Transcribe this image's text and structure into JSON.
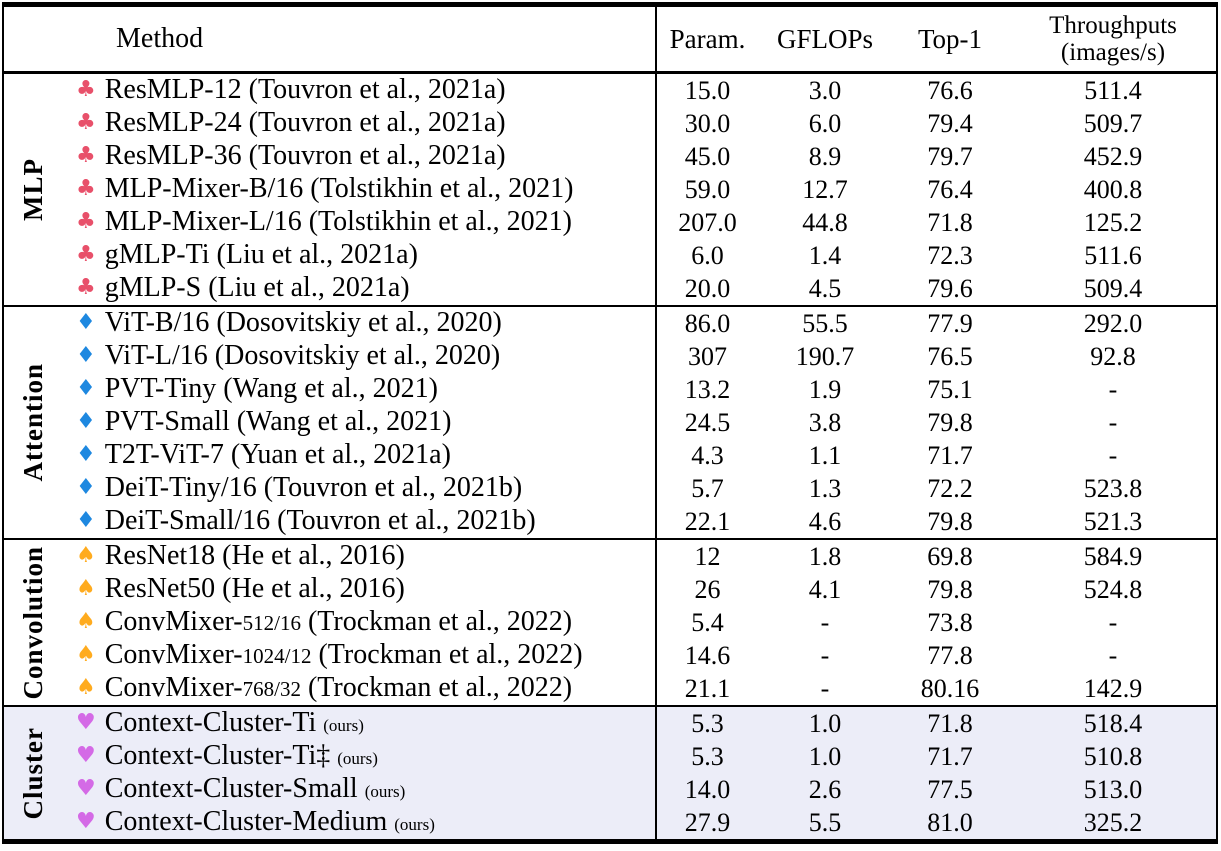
{
  "header": {
    "method": "Method",
    "param": "Param.",
    "gflops": "GFLOPs",
    "top1": "Top-1",
    "throughputs": [
      "Throughputs",
      "(images/s)"
    ]
  },
  "colors": {
    "highlight_bg": "#ecedf8",
    "rule": "#000000",
    "club": "#e8506a",
    "diamond": "#1e88e0",
    "spade": "#ffab1e",
    "heart": "#d46ae6"
  },
  "sections": [
    {
      "id": "mlp",
      "label": "MLP",
      "suit": "♣",
      "icon": "club-icon",
      "suit_color": "#e8506a",
      "highlight": false,
      "rows": [
        {
          "m1": "ResMLP-12 (Touvron et al., 2021a)",
          "param": "15.0",
          "gflops": "3.0",
          "top1": "76.6",
          "thr": "511.4"
        },
        {
          "m1": "ResMLP-24 (Touvron et al., 2021a)",
          "param": "30.0",
          "gflops": "6.0",
          "top1": "79.4",
          "thr": "509.7"
        },
        {
          "m1": "ResMLP-36 (Touvron et al., 2021a)",
          "param": "45.0",
          "gflops": "8.9",
          "top1": "79.7",
          "thr": "452.9"
        },
        {
          "m1": "MLP-Mixer-B/16 (Tolstikhin et al., 2021)",
          "param": "59.0",
          "gflops": "12.7",
          "top1": "76.4",
          "thr": "400.8"
        },
        {
          "m1": "MLP-Mixer-L/16 (Tolstikhin et al., 2021)",
          "param": "207.0",
          "gflops": "44.8",
          "top1": "71.8",
          "thr": "125.2"
        },
        {
          "m1": "gMLP-Ti (Liu et al., 2021a)",
          "param": "6.0",
          "gflops": "1.4",
          "top1": "72.3",
          "thr": "511.6"
        },
        {
          "m1": "gMLP-S (Liu et al., 2021a)",
          "param": "20.0",
          "gflops": "4.5",
          "top1": "79.6",
          "thr": "509.4"
        }
      ]
    },
    {
      "id": "attention",
      "label": "Attention",
      "suit": "♦",
      "icon": "diamond-icon",
      "suit_color": "#1e88e0",
      "highlight": false,
      "rows": [
        {
          "m1": "ViT-B/16 (Dosovitskiy et al., 2020)",
          "param": "86.0",
          "gflops": "55.5",
          "top1": "77.9",
          "thr": "292.0"
        },
        {
          "m1": "ViT-L/16 (Dosovitskiy et al., 2020)",
          "param": "307",
          "gflops": "190.7",
          "top1": "76.5",
          "thr": "92.8"
        },
        {
          "m1": "PVT-Tiny (Wang et al., 2021)",
          "param": "13.2",
          "gflops": "1.9",
          "top1": "75.1",
          "thr": "-"
        },
        {
          "m1": "PVT-Small (Wang et al., 2021)",
          "param": "24.5",
          "gflops": "3.8",
          "top1": "79.8",
          "thr": "-"
        },
        {
          "m1": "T2T-ViT-7  (Yuan et al., 2021a)",
          "param": "4.3",
          "gflops": "1.1",
          "top1": "71.7",
          "thr": "-"
        },
        {
          "m1": "DeiT-Tiny/16 (Touvron et al., 2021b)",
          "param": "5.7",
          "gflops": "1.3",
          "top1": "72.2",
          "thr": "523.8"
        },
        {
          "m1": "DeiT-Small/16 (Touvron et al., 2021b)",
          "param": "22.1",
          "gflops": "4.6",
          "top1": "79.8",
          "thr": "521.3"
        }
      ]
    },
    {
      "id": "convolution",
      "label": "Convolution",
      "suit": "♠",
      "icon": "spade-icon",
      "suit_color": "#ffab1e",
      "highlight": false,
      "rows": [
        {
          "m1": "ResNet18 (He et al., 2016)",
          "param": "12",
          "gflops": "1.8",
          "top1": "69.8",
          "thr": "584.9"
        },
        {
          "m1": "ResNet50 (He et al., 2016)",
          "param": "26",
          "gflops": "4.1",
          "top1": "79.8",
          "thr": "524.8"
        },
        {
          "m1": "ConvMixer-",
          "m2": "512/16",
          "m3": " (Trockman et al., 2022)",
          "param": "5.4",
          "gflops": "-",
          "top1": "73.8",
          "thr": "-"
        },
        {
          "m1": "ConvMixer-",
          "m2": "1024/12",
          "m3": " (Trockman et al., 2022)",
          "param": "14.6",
          "gflops": "-",
          "top1": "77.8",
          "thr": "-"
        },
        {
          "m1": "ConvMixer-",
          "m2": "768/32",
          "m3": " (Trockman et al., 2022)",
          "param": "21.1",
          "gflops": "-",
          "top1": "80.16",
          "thr": "142.9"
        }
      ]
    },
    {
      "id": "cluster",
      "label": "Cluster",
      "suit": "♥",
      "icon": "heart-icon",
      "suit_color": "#d46ae6",
      "highlight": true,
      "rows": [
        {
          "m1": "Context-Cluster-Ti",
          "ours": "(ours)",
          "param": "5.3",
          "gflops": "1.0",
          "top1": "71.8",
          "thr": "518.4"
        },
        {
          "m1": "Context-Cluster-Ti‡",
          "ours": "(ours)",
          "param": "5.3",
          "gflops": "1.0",
          "top1": "71.7",
          "thr": "510.8"
        },
        {
          "m1": "Context-Cluster-Small",
          "ours": "(ours)",
          "param": "14.0",
          "gflops": "2.6",
          "top1": "77.5",
          "thr": "513.0"
        },
        {
          "m1": "Context-Cluster-Medium",
          "ours": "(ours)",
          "param": "27.9",
          "gflops": "5.5",
          "top1": "81.0",
          "thr": "325.2"
        }
      ]
    }
  ]
}
